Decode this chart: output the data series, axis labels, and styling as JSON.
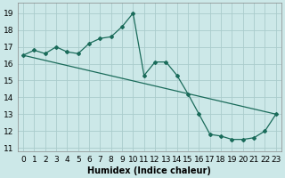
{
  "xlabel": "Humidex (Indice chaleur)",
  "bg_color": "#cce8e8",
  "grid_color": "#aacccc",
  "line_color": "#1a6b5a",
  "xlim": [
    -0.5,
    23.5
  ],
  "ylim": [
    10.8,
    19.6
  ],
  "yticks": [
    11,
    12,
    13,
    14,
    15,
    16,
    17,
    18,
    19
  ],
  "xticks": [
    0,
    1,
    2,
    3,
    4,
    5,
    6,
    7,
    8,
    9,
    10,
    11,
    12,
    13,
    14,
    15,
    16,
    17,
    18,
    19,
    20,
    21,
    22,
    23
  ],
  "line1_x": [
    0,
    1,
    2,
    3,
    4,
    5,
    6,
    7,
    8,
    9,
    10,
    11,
    12,
    13,
    14,
    15,
    16,
    17,
    18,
    19,
    20,
    21,
    22,
    23
  ],
  "line1_y": [
    16.5,
    16.8,
    16.6,
    17.0,
    16.7,
    16.6,
    17.2,
    17.5,
    17.6,
    18.2,
    19.0,
    15.3,
    16.1,
    16.1,
    15.3,
    14.2,
    13.0,
    11.8,
    11.7,
    11.5,
    11.5,
    11.6,
    12.0,
    13.0
  ],
  "line2_x": [
    0,
    23
  ],
  "line2_y": [
    16.5,
    13.0
  ],
  "fontsize": 6.5,
  "xlabel_fontsize": 7
}
